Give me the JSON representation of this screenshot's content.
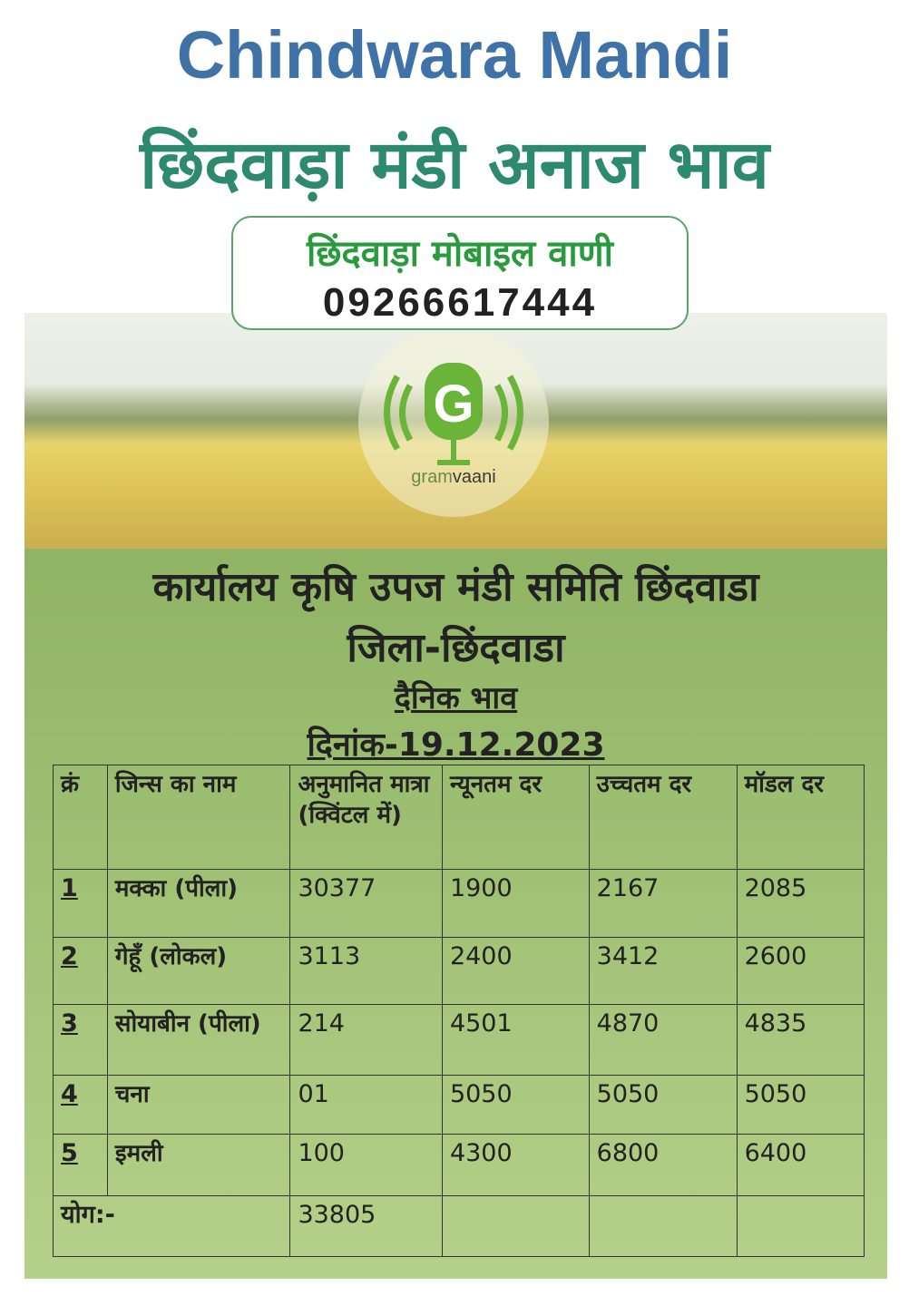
{
  "header": {
    "title": "Chindwara Mandi",
    "subtitle": "छिंदवाड़ा मंडी अनाज भाव"
  },
  "contact": {
    "name": "छिंदवाड़ा मोबाइल वाणी",
    "phone": "09266617444"
  },
  "logo": {
    "parts": [
      "gram",
      "vaani"
    ]
  },
  "notice": {
    "office": "कार्यालय कृषि उपज मंडी समिति छिंदवाडा",
    "district": "जिला-छिंदवाडा",
    "heading": "दैनिक भाव",
    "date": "दिनांक-19.12.2023"
  },
  "table": {
    "columns": [
      "क्रं",
      "जिन्स का नाम",
      "अनुमानित मात्रा (क्विंटल में)",
      "न्यूनतम दर",
      "उच्चतम दर",
      "मॉडल दर"
    ],
    "rows": [
      [
        "1",
        "मक्का (पीला)",
        "30377",
        "1900",
        "2167",
        "2085"
      ],
      [
        "2",
        "गेहूँ (लोकल)",
        "3113",
        "2400",
        "3412",
        "2600"
      ],
      [
        "3",
        "सोयाबीन (पीला)",
        "214",
        "4501",
        "4870",
        "4835"
      ],
      [
        "4",
        "चना",
        "01",
        "5050",
        "5050",
        "5050"
      ],
      [
        "5",
        "इमली",
        "100",
        "4300",
        "6800",
        "6400"
      ]
    ],
    "total": {
      "label": "योग:-",
      "quantity": "33805"
    }
  }
}
